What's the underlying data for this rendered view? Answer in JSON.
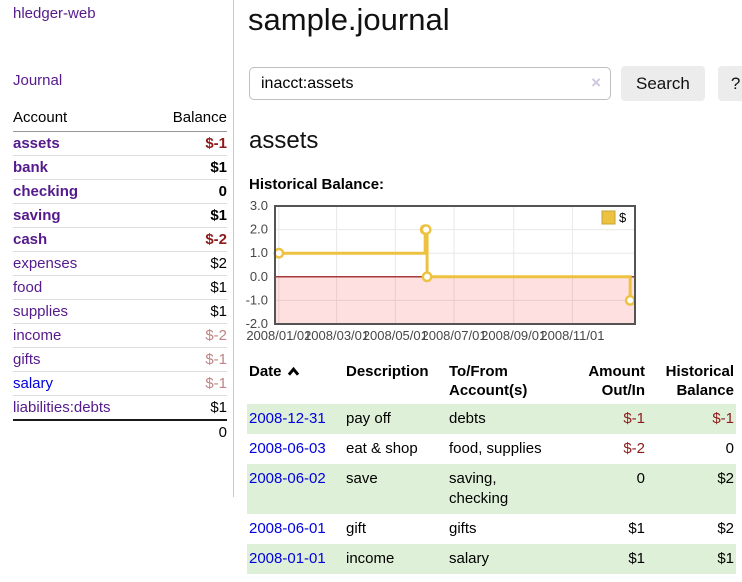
{
  "sidebar": {
    "brand": "hledger-web",
    "journal_link": "Journal",
    "accounts_table": {
      "account_header": "Account",
      "balance_header": "Balance",
      "rows": [
        {
          "name": "assets",
          "balance": "$-1"
        },
        {
          "name": "bank",
          "balance": "$1"
        },
        {
          "name": "checking",
          "balance": "0"
        },
        {
          "name": "saving",
          "balance": "$1"
        },
        {
          "name": "cash",
          "balance": "$-2"
        },
        {
          "name": "expenses",
          "balance": "$2"
        },
        {
          "name": "food",
          "balance": "$1"
        },
        {
          "name": "supplies",
          "balance": "$1"
        },
        {
          "name": "income",
          "balance": "$-2"
        },
        {
          "name": "gifts",
          "balance": "$-1"
        },
        {
          "name": "salary",
          "balance": "$-1"
        },
        {
          "name": "liabilities:debts",
          "balance": "$1"
        }
      ],
      "total": "0"
    }
  },
  "header": {
    "title": "sample.journal"
  },
  "search": {
    "query": "inacct:assets",
    "clear_icon": "×",
    "search_button": "Search",
    "help_button": "?"
  },
  "account_page": {
    "heading": "assets",
    "chart_label": "Historical Balance:"
  },
  "register": {
    "columns": {
      "date": "Date",
      "description": "Description",
      "tofrom_l1": "To/From",
      "tofrom_l2": "Account(s)",
      "amount_l1": "Amount",
      "amount_l2": "Out/In",
      "historical_l1": "Historical",
      "historical_l2": "Balance"
    },
    "rows": [
      {
        "date": "2008-12-31",
        "description": "pay off",
        "accounts": "debts",
        "amount": "$-1",
        "balance": "$-1"
      },
      {
        "date": "2008-06-03",
        "description": "eat & shop",
        "accounts": "food, supplies",
        "amount": "$-2",
        "balance": "0"
      },
      {
        "date": "2008-06-02",
        "description": "save",
        "accounts": "saving, checking",
        "amount": "0",
        "balance": "$2"
      },
      {
        "date": "2008-06-01",
        "description": "gift",
        "accounts": "gifts",
        "amount": "$1",
        "balance": "$2"
      },
      {
        "date": "2008-01-01",
        "description": "income",
        "accounts": "salary",
        "amount": "$1",
        "balance": "$1"
      }
    ]
  },
  "chart_data": {
    "type": "line",
    "title": "Historical Balance:",
    "xlim": [
      "2007-12-28",
      "2009-01-05"
    ],
    "ylim": [
      -2,
      3
    ],
    "x_ticks": [
      {
        "date": "2008-01-01",
        "label": "2008/01/01"
      },
      {
        "date": "2008-03-01",
        "label": "2008/03/01"
      },
      {
        "date": "2008-05-01",
        "label": "2008/05/01"
      },
      {
        "date": "2008-07-01",
        "label": "2008/07/01"
      },
      {
        "date": "2008-09-01",
        "label": "2008/09/01"
      },
      {
        "date": "2008-11-01",
        "label": "2008/11/01"
      }
    ],
    "y_ticks": [
      {
        "value": 3,
        "label": "3.0"
      },
      {
        "value": 2,
        "label": "2.0"
      },
      {
        "value": 1,
        "label": "1.0"
      },
      {
        "value": 0,
        "label": "0.0"
      },
      {
        "value": -1,
        "label": "-1.0"
      },
      {
        "value": -2,
        "label": "-2.0"
      }
    ],
    "grid": true,
    "legend_position": "top-right",
    "negative_region": {
      "below": 0,
      "color": "rgba(255,0,0,0.12)",
      "zero_line_color": "#8b0000"
    },
    "series": [
      {
        "name": "$",
        "color": "#edc240",
        "step": true,
        "points": [
          {
            "date": "2008-01-01",
            "value": 1
          },
          {
            "date": "2008-06-01",
            "value": 2
          },
          {
            "date": "2008-06-02",
            "value": 2
          },
          {
            "date": "2008-06-03",
            "value": 0
          },
          {
            "date": "2008-12-31",
            "value": -1
          }
        ]
      }
    ]
  },
  "colors": {
    "accent_gold": "#edc240",
    "link_purple": "#551a8b",
    "link_blue": "#0000e0",
    "negative_dark": "#8e1b1b",
    "negative_light": "#c08484",
    "row_green": "#dff0d8"
  }
}
